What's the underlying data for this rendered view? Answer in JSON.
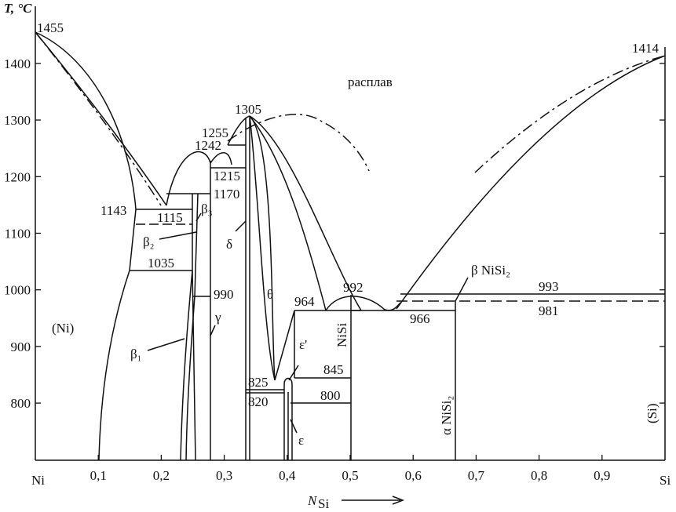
{
  "axes": {
    "y_label": "T, °C",
    "x_label": "N",
    "x_label_sub": "Si",
    "x_start_label": "Ni",
    "x_end_label": "Si",
    "xlim": [
      0,
      1
    ],
    "ylim": [
      699,
      1512
    ],
    "xticks": [
      {
        "value": 0.1,
        "label": "0,1"
      },
      {
        "value": 0.2,
        "label": "0,2"
      },
      {
        "value": 0.3,
        "label": "0,3"
      },
      {
        "value": 0.4,
        "label": "0,4"
      },
      {
        "value": 0.5,
        "label": "0,5"
      },
      {
        "value": 0.6,
        "label": "0,6"
      },
      {
        "value": 0.7,
        "label": "0,7"
      },
      {
        "value": 0.8,
        "label": "0,8"
      },
      {
        "value": 0.9,
        "label": "0,9"
      }
    ],
    "yticks": [
      800,
      900,
      1000,
      1100,
      1200,
      1300,
      1400
    ]
  },
  "labels": [
    "1455",
    "1414",
    "расплав",
    "1305",
    "1255",
    "1242",
    "1215",
    "1170",
    "1143",
    "1115",
    "β₃",
    "β₂",
    "1035",
    "990",
    "δ",
    "γ",
    "θ",
    "964",
    "992",
    "(Ni)",
    "β₁",
    "ε'",
    "845",
    "825",
    "820",
    "800",
    "ε",
    "NiSi",
    "966",
    "β NiSi₂",
    "993",
    "981",
    "α NiSi₂",
    "(Si)"
  ]
}
